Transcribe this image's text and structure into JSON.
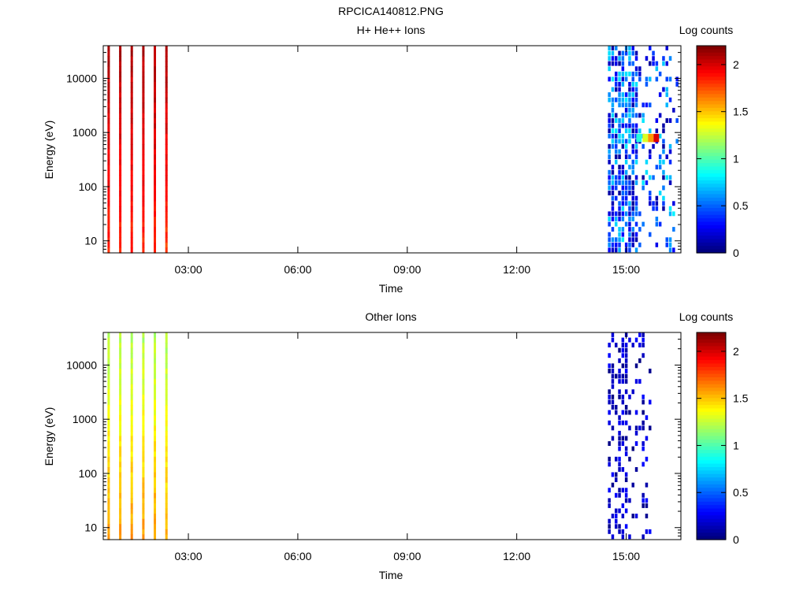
{
  "figure": {
    "filename": "RPCICA140812.PNG"
  },
  "chart_data": [
    {
      "type": "heatmap",
      "title": "H+ He++ Ions",
      "xlabel": "Time",
      "ylabel": "Energy (eV)",
      "x_scale": "time",
      "x_range": [
        "00:40",
        "16:30"
      ],
      "x_ticks": [
        "03:00",
        "06:00",
        "09:00",
        "12:00",
        "15:00"
      ],
      "y_scale": "log",
      "y_range": [
        6,
        40000
      ],
      "y_ticks": [
        "10",
        "100",
        "1000",
        "10000"
      ],
      "colorbar": {
        "label": "Log counts",
        "range": [
          0,
          2.2
        ],
        "ticks": [
          "0",
          "0.5",
          "1",
          "1.5",
          "2"
        ]
      },
      "bands": [
        {
          "start": "00:47",
          "end": "00:50",
          "level_high_energy": 2.1,
          "level_low_energy": 1.85
        },
        {
          "start": "01:06",
          "end": "01:09",
          "level_high_energy": 2.1,
          "level_low_energy": 1.85
        },
        {
          "start": "01:25",
          "end": "01:28",
          "level_high_energy": 2.1,
          "level_low_energy": 1.85
        },
        {
          "start": "01:44",
          "end": "01:47",
          "level_high_energy": 2.1,
          "level_low_energy": 1.85
        },
        {
          "start": "02:03",
          "end": "02:06",
          "level_high_energy": 2.1,
          "level_low_energy": 1.85
        },
        {
          "start": "02:22",
          "end": "02:25",
          "level_high_energy": 2.1,
          "level_low_energy": 1.8
        }
      ],
      "sparse_activity": {
        "start": "14:30",
        "end": "16:30",
        "level_range": [
          0.05,
          0.8
        ],
        "peak": {
          "time": "15:45",
          "energy": 800,
          "level": 2.0
        }
      }
    },
    {
      "type": "heatmap",
      "title": "Other Ions",
      "xlabel": "Time",
      "ylabel": "Energy (eV)",
      "x_scale": "time",
      "x_range": [
        "00:40",
        "16:30"
      ],
      "x_ticks": [
        "03:00",
        "06:00",
        "09:00",
        "12:00",
        "15:00"
      ],
      "y_scale": "log",
      "y_range": [
        6,
        40000
      ],
      "y_ticks": [
        "10",
        "100",
        "1000",
        "10000"
      ],
      "colorbar": {
        "label": "Log counts",
        "range": [
          0,
          2.2
        ],
        "ticks": [
          "0",
          "0.5",
          "1",
          "1.5",
          "2"
        ]
      },
      "bands": [
        {
          "start": "00:47",
          "end": "00:50",
          "level_high_energy": 1.2,
          "level_low_energy": 1.6
        },
        {
          "start": "01:06",
          "end": "01:09",
          "level_high_energy": 1.2,
          "level_low_energy": 1.6
        },
        {
          "start": "01:25",
          "end": "01:28",
          "level_high_energy": 1.2,
          "level_low_energy": 1.6
        },
        {
          "start": "01:44",
          "end": "01:47",
          "level_high_energy": 1.2,
          "level_low_energy": 1.6
        },
        {
          "start": "02:03",
          "end": "02:06",
          "level_high_energy": 1.2,
          "level_low_energy": 1.6
        },
        {
          "start": "02:22",
          "end": "02:25",
          "level_high_energy": 1.2,
          "level_low_energy": 1.55
        }
      ],
      "sparse_activity": {
        "start": "14:30",
        "end": "15:45",
        "level_range": [
          0.0,
          0.3
        ]
      }
    }
  ]
}
